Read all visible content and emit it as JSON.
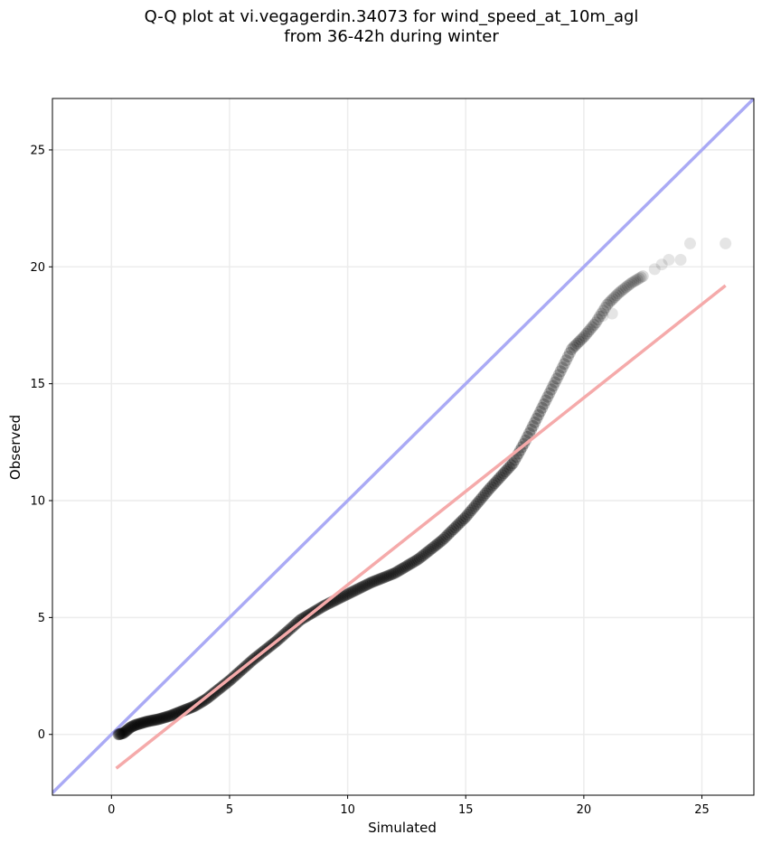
{
  "chart_data": {
    "type": "scatter",
    "title_line1": "Q-Q plot at vi.vegagerdin.34073 for wind_speed_at_10m_agl",
    "title_line2": "from 36-42h during winter",
    "xlabel": "Simulated",
    "ylabel": "Observed",
    "xlim": [
      -2.5,
      27.2
    ],
    "ylim": [
      -2.6,
      27.2
    ],
    "xticks": [
      0,
      5,
      10,
      15,
      20,
      25
    ],
    "yticks": [
      0,
      5,
      10,
      15,
      20,
      25
    ],
    "grid": true,
    "colors": {
      "points": "#000000",
      "identity_line": "#aaaaf5",
      "fit_line": "#f5aaaa",
      "grid": "#ececec"
    },
    "identity_line": {
      "x": [
        -2.5,
        27.2
      ],
      "y": [
        -2.5,
        27.2
      ]
    },
    "fit_line": {
      "x": [
        0.2,
        26.0
      ],
      "y": [
        -1.45,
        19.2
      ]
    },
    "quantile_knots": [
      [
        0.3,
        0.0
      ],
      [
        0.5,
        0.05
      ],
      [
        0.8,
        0.3
      ],
      [
        1.0,
        0.4
      ],
      [
        1.5,
        0.55
      ],
      [
        2.0,
        0.65
      ],
      [
        2.5,
        0.8
      ],
      [
        3.0,
        1.0
      ],
      [
        3.5,
        1.2
      ],
      [
        4.0,
        1.5
      ],
      [
        4.5,
        1.9
      ],
      [
        5.0,
        2.3
      ],
      [
        6.0,
        3.2
      ],
      [
        7.0,
        4.0
      ],
      [
        8.0,
        4.9
      ],
      [
        9.0,
        5.5
      ],
      [
        10.0,
        6.0
      ],
      [
        11.0,
        6.5
      ],
      [
        12.0,
        6.9
      ],
      [
        13.0,
        7.5
      ],
      [
        14.0,
        8.3
      ],
      [
        15.0,
        9.3
      ],
      [
        16.0,
        10.5
      ],
      [
        17.0,
        11.6
      ],
      [
        17.5,
        12.5
      ],
      [
        18.0,
        13.5
      ],
      [
        18.5,
        14.5
      ],
      [
        19.0,
        15.5
      ],
      [
        19.5,
        16.5
      ],
      [
        20.0,
        17.0
      ],
      [
        20.5,
        17.6
      ],
      [
        21.0,
        18.4
      ],
      [
        21.5,
        18.9
      ],
      [
        22.0,
        19.3
      ],
      [
        22.5,
        19.6
      ]
    ],
    "quantile_count": 320,
    "tail_points": [
      [
        20.8,
        17.9
      ],
      [
        21.2,
        18.0
      ],
      [
        23.0,
        19.9
      ],
      [
        23.3,
        20.1
      ],
      [
        23.6,
        20.3
      ],
      [
        24.1,
        20.3
      ],
      [
        24.5,
        21.0
      ],
      [
        26.0,
        21.0
      ]
    ]
  }
}
